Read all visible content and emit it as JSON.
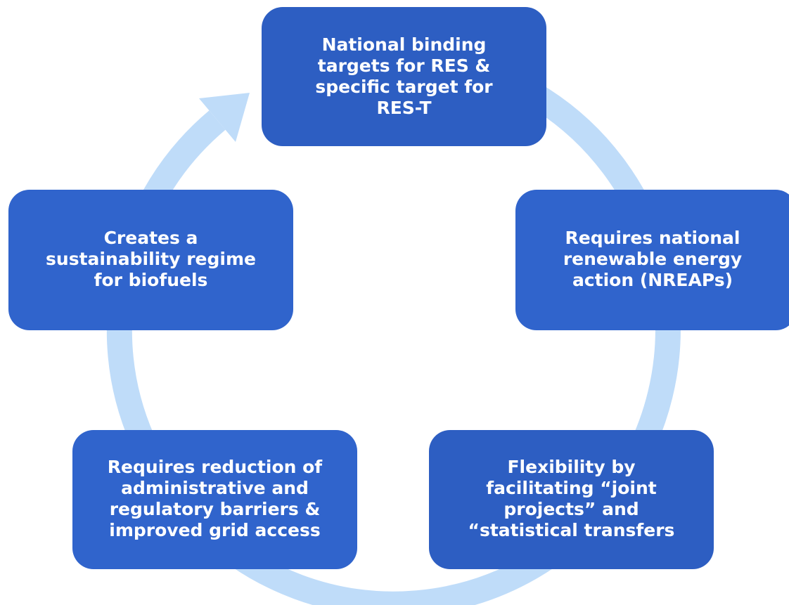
{
  "nodes": [
    {
      "lines": [
        "National binding",
        "targets for RES &",
        "specific target for",
        "RES-T"
      ]
    },
    {
      "lines": [
        "Requires national",
        "renewable energy",
        "action (NREAPs)"
      ]
    },
    {
      "lines": [
        "Flexibility by",
        "facilitating “joint",
        "projects” and",
        "“statistical transfers"
      ]
    },
    {
      "lines": [
        "Requires reduction of",
        "administrative and",
        "regulatory barriers &",
        "improved grid access"
      ]
    },
    {
      "lines": [
        "Creates a",
        "sustainability regime",
        "for biofuels"
      ]
    }
  ]
}
